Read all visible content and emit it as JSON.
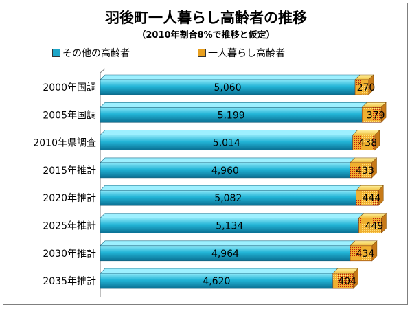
{
  "chart_data": {
    "type": "bar",
    "orientation": "horizontal",
    "stacked": true,
    "title": "羽後町一人暮らし高齢者の推移",
    "subtitle": "（2010年割合8%で推移と仮定）",
    "categories": [
      "2000年国調",
      "2005年国調",
      "2010年県調査",
      "2015年推計",
      "2020年推計",
      "2025年推計",
      "2030年推計",
      "2035年推計"
    ],
    "series": [
      {
        "name": "その他の高齢者",
        "color": "#1ea6c8",
        "values": [
          5060,
          5199,
          5014,
          4960,
          5082,
          5134,
          4964,
          4620
        ]
      },
      {
        "name": "一人暮らし高齢者",
        "color": "#e8a020",
        "values": [
          270,
          379,
          438,
          433,
          444,
          449,
          434,
          404
        ]
      }
    ],
    "value_labels": [
      [
        "5,060",
        "5,199",
        "5,014",
        "4,960",
        "5,082",
        "5,134",
        "4,964",
        "4,620"
      ],
      [
        "270",
        "379",
        "438",
        "433",
        "444",
        "449",
        "434",
        "404"
      ]
    ],
    "xlim": [
      0,
      6000
    ],
    "legend_position": "top-left",
    "grid": false
  }
}
